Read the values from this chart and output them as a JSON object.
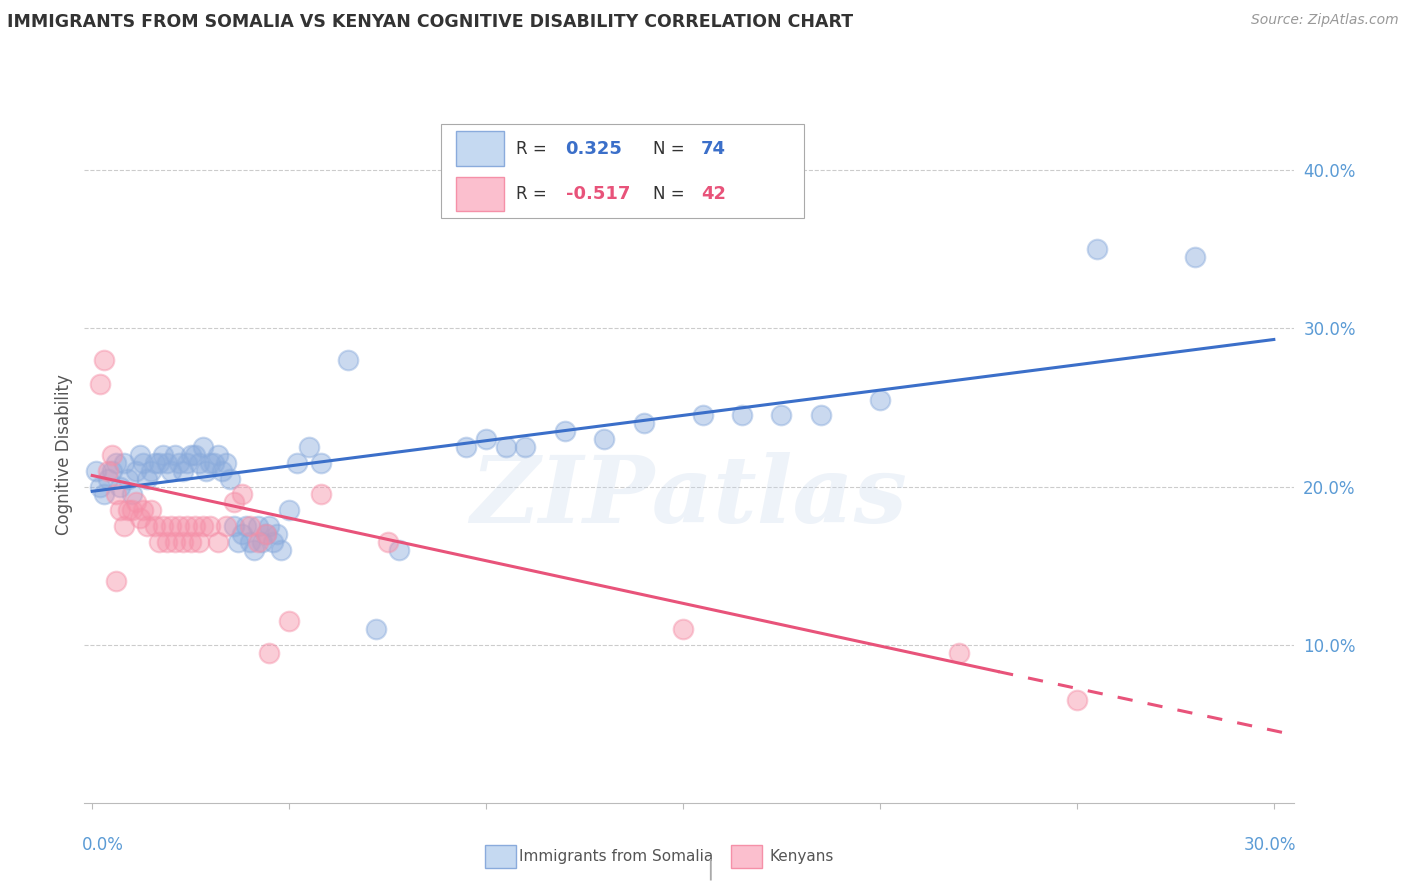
{
  "title": "IMMIGRANTS FROM SOMALIA VS KENYAN COGNITIVE DISABILITY CORRELATION CHART",
  "source": "Source: ZipAtlas.com",
  "ylabel": "Cognitive Disability",
  "watermark": "ZIPatlas",
  "xlim": [
    -0.002,
    0.305
  ],
  "ylim": [
    0.0,
    0.44
  ],
  "somalia_color": "#8AABDC",
  "kenyan_color": "#F590A8",
  "somalia_line_color": "#3B6FC9",
  "kenyan_line_color": "#E8537A",
  "grid_color": "#CCCCCC",
  "background_color": "#FFFFFF",
  "somalia_line": [
    [
      0.0,
      0.197
    ],
    [
      0.3,
      0.293
    ]
  ],
  "kenyan_line_solid": [
    [
      0.0,
      0.207
    ],
    [
      0.23,
      0.083
    ]
  ],
  "kenyan_line_dashed": [
    [
      0.23,
      0.083
    ],
    [
      0.32,
      0.035
    ]
  ],
  "somalia_points": [
    [
      0.001,
      0.21
    ],
    [
      0.002,
      0.2
    ],
    [
      0.003,
      0.195
    ],
    [
      0.004,
      0.205
    ],
    [
      0.005,
      0.21
    ],
    [
      0.006,
      0.215
    ],
    [
      0.007,
      0.2
    ],
    [
      0.008,
      0.215
    ],
    [
      0.009,
      0.205
    ],
    [
      0.01,
      0.195
    ],
    [
      0.011,
      0.21
    ],
    [
      0.012,
      0.22
    ],
    [
      0.013,
      0.215
    ],
    [
      0.014,
      0.205
    ],
    [
      0.015,
      0.21
    ],
    [
      0.016,
      0.215
    ],
    [
      0.017,
      0.215
    ],
    [
      0.018,
      0.22
    ],
    [
      0.019,
      0.215
    ],
    [
      0.02,
      0.21
    ],
    [
      0.021,
      0.22
    ],
    [
      0.022,
      0.215
    ],
    [
      0.023,
      0.21
    ],
    [
      0.024,
      0.215
    ],
    [
      0.025,
      0.22
    ],
    [
      0.026,
      0.22
    ],
    [
      0.027,
      0.215
    ],
    [
      0.028,
      0.225
    ],
    [
      0.029,
      0.21
    ],
    [
      0.03,
      0.215
    ],
    [
      0.031,
      0.215
    ],
    [
      0.032,
      0.22
    ],
    [
      0.033,
      0.21
    ],
    [
      0.034,
      0.215
    ],
    [
      0.035,
      0.205
    ],
    [
      0.036,
      0.175
    ],
    [
      0.037,
      0.165
    ],
    [
      0.038,
      0.17
    ],
    [
      0.039,
      0.175
    ],
    [
      0.04,
      0.165
    ],
    [
      0.041,
      0.16
    ],
    [
      0.042,
      0.175
    ],
    [
      0.043,
      0.165
    ],
    [
      0.044,
      0.17
    ],
    [
      0.045,
      0.175
    ],
    [
      0.046,
      0.165
    ],
    [
      0.047,
      0.17
    ],
    [
      0.048,
      0.16
    ],
    [
      0.05,
      0.185
    ],
    [
      0.052,
      0.215
    ],
    [
      0.055,
      0.225
    ],
    [
      0.058,
      0.215
    ],
    [
      0.065,
      0.28
    ],
    [
      0.072,
      0.11
    ],
    [
      0.078,
      0.16
    ],
    [
      0.095,
      0.225
    ],
    [
      0.1,
      0.23
    ],
    [
      0.105,
      0.225
    ],
    [
      0.11,
      0.225
    ],
    [
      0.12,
      0.235
    ],
    [
      0.13,
      0.23
    ],
    [
      0.14,
      0.24
    ],
    [
      0.155,
      0.245
    ],
    [
      0.165,
      0.245
    ],
    [
      0.175,
      0.245
    ],
    [
      0.185,
      0.245
    ],
    [
      0.2,
      0.255
    ],
    [
      0.255,
      0.35
    ],
    [
      0.28,
      0.345
    ]
  ],
  "kenyan_points": [
    [
      0.002,
      0.265
    ],
    [
      0.003,
      0.28
    ],
    [
      0.004,
      0.21
    ],
    [
      0.005,
      0.22
    ],
    [
      0.006,
      0.195
    ],
    [
      0.007,
      0.185
    ],
    [
      0.008,
      0.175
    ],
    [
      0.009,
      0.185
    ],
    [
      0.01,
      0.185
    ],
    [
      0.011,
      0.19
    ],
    [
      0.012,
      0.18
    ],
    [
      0.013,
      0.185
    ],
    [
      0.014,
      0.175
    ],
    [
      0.015,
      0.185
    ],
    [
      0.016,
      0.175
    ],
    [
      0.017,
      0.165
    ],
    [
      0.018,
      0.175
    ],
    [
      0.019,
      0.165
    ],
    [
      0.02,
      0.175
    ],
    [
      0.021,
      0.165
    ],
    [
      0.022,
      0.175
    ],
    [
      0.023,
      0.165
    ],
    [
      0.024,
      0.175
    ],
    [
      0.025,
      0.165
    ],
    [
      0.026,
      0.175
    ],
    [
      0.027,
      0.165
    ],
    [
      0.028,
      0.175
    ],
    [
      0.03,
      0.175
    ],
    [
      0.032,
      0.165
    ],
    [
      0.034,
      0.175
    ],
    [
      0.036,
      0.19
    ],
    [
      0.038,
      0.195
    ],
    [
      0.04,
      0.175
    ],
    [
      0.042,
      0.165
    ],
    [
      0.044,
      0.17
    ],
    [
      0.006,
      0.14
    ],
    [
      0.045,
      0.095
    ],
    [
      0.05,
      0.115
    ],
    [
      0.058,
      0.195
    ],
    [
      0.075,
      0.165
    ],
    [
      0.15,
      0.11
    ],
    [
      0.22,
      0.095
    ],
    [
      0.25,
      0.065
    ]
  ]
}
